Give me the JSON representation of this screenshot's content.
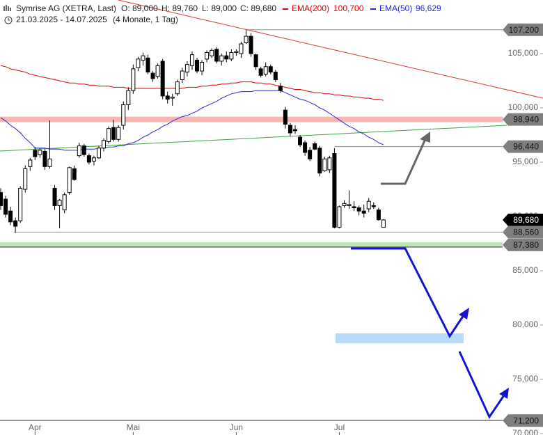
{
  "chart_data": {
    "type": "candlestick",
    "title": "Symrise AG (XETRA, Last)",
    "ohlc": [
      "O: 89,000",
      "H: 89,760",
      "L: 89,000",
      "C: 89,680"
    ],
    "date_range": "21.03.2025 - 14.07.2025",
    "period": "(4 Monate, 1 Tag)",
    "categories": [
      null,
      null,
      null,
      null,
      null,
      null,
      null,
      "Apr",
      null,
      null,
      null,
      null,
      null,
      null,
      null,
      null,
      null,
      null,
      null,
      null,
      null,
      null,
      null,
      null,
      null,
      null,
      null,
      "Mai",
      null,
      null,
      null,
      null,
      null,
      null,
      null,
      null,
      null,
      null,
      null,
      null,
      null,
      null,
      null,
      null,
      null,
      null,
      null,
      null,
      "Jun",
      null,
      null,
      null,
      null,
      null,
      null,
      null,
      null,
      null,
      null,
      null,
      null,
      null,
      null,
      null,
      null,
      null,
      null,
      null,
      null,
      "Jul",
      null,
      null,
      null,
      null,
      null,
      null,
      null,
      null,
      null
    ],
    "candles": {
      "up_color": "#ffffff",
      "down_color": "#000000",
      "open": [
        92200,
        91600,
        90500,
        89600,
        89600,
        92500,
        94600,
        96100,
        95700,
        96000,
        94600,
        92600,
        91000,
        90600,
        92200,
        94400,
        95600,
        96500,
        95600,
        95100,
        95400,
        96300,
        96900,
        98200,
        97100,
        98400,
        100300,
        101600,
        103700,
        104400,
        104600,
        103200,
        102900,
        104300,
        101100,
        100900,
        101300,
        102600,
        103300,
        103900,
        104400,
        103400,
        104500,
        104800,
        105400,
        104300,
        104800,
        104500,
        105100,
        105000,
        106000,
        106600,
        104900,
        103600,
        103100,
        103800,
        103300,
        102000,
        99800,
        98400,
        98000,
        97300,
        96800,
        96100,
        96700,
        96300,
        94200,
        94300,
        95800,
        89000,
        91000,
        91000,
        90900,
        90800,
        90500,
        90700,
        91000,
        90600,
        89000
      ],
      "high": [
        92600,
        91900,
        90900,
        89900,
        92800,
        94700,
        95400,
        96400,
        96300,
        96200,
        98850,
        92900,
        91600,
        92200,
        94600,
        94700,
        96800,
        96700,
        95800,
        95600,
        96500,
        97200,
        98300,
        98900,
        98400,
        100600,
        101900,
        104000,
        104700,
        105100,
        104900,
        103400,
        104100,
        104500,
        101500,
        101300,
        102600,
        103700,
        104300,
        105200,
        104600,
        104400,
        105300,
        105500,
        105600,
        105000,
        105200,
        105400,
        105400,
        106100,
        107200,
        106900,
        105000,
        103800,
        104200,
        104000,
        103500,
        102300,
        100100,
        98600,
        98400,
        97500,
        97000,
        96400,
        96900,
        96500,
        95500,
        95600,
        96300,
        91000,
        91500,
        92400,
        91400,
        91000,
        91100,
        91700,
        91300,
        90800,
        89760
      ],
      "low": [
        90600,
        89900,
        89200,
        88500,
        89400,
        92200,
        94200,
        95200,
        95400,
        94300,
        94400,
        90600,
        88900,
        90300,
        92000,
        93300,
        95400,
        95500,
        94800,
        94700,
        95300,
        96000,
        96700,
        96900,
        96900,
        98000,
        99800,
        101300,
        103400,
        103900,
        103100,
        102400,
        102700,
        100800,
        100400,
        100200,
        101100,
        102300,
        102900,
        103500,
        103200,
        103000,
        104200,
        104600,
        104100,
        103900,
        104200,
        104300,
        104800,
        104600,
        105900,
        104700,
        103500,
        102800,
        102900,
        103100,
        102400,
        101400,
        98100,
        97400,
        97600,
        96400,
        95600,
        95100,
        96100,
        93700,
        94100,
        94000,
        88900,
        88900,
        90800,
        90700,
        90500,
        90100,
        89900,
        90400,
        90700,
        89600,
        89000
      ],
      "close": [
        91000,
        90200,
        89500,
        89100,
        92600,
        94400,
        95200,
        95500,
        96100,
        94600,
        95300,
        91000,
        91500,
        92000,
        94500,
        93400,
        96500,
        95700,
        95000,
        95400,
        96300,
        97000,
        98100,
        97100,
        98200,
        100300,
        101600,
        103600,
        104500,
        104800,
        103300,
        102700,
        103900,
        101100,
        100800,
        101000,
        102400,
        103400,
        104000,
        104900,
        103400,
        104200,
        105100,
        105300,
        104300,
        104800,
        104500,
        105100,
        105200,
        105900,
        106600,
        105000,
        103800,
        103000,
        103800,
        103300,
        102600,
        101600,
        98500,
        97700,
        97900,
        96600,
        95900,
        95300,
        96200,
        94000,
        95300,
        95400,
        89000,
        90900,
        91200,
        91100,
        90800,
        90500,
        90300,
        91400,
        90900,
        89700,
        89680
      ]
    },
    "series": [
      {
        "name": "EMA(200)",
        "color": "#e00000",
        "last": "100,700",
        "values": [
          103900,
          103800,
          103600,
          103500,
          103400,
          103300,
          103100,
          103000,
          102900,
          102800,
          102700,
          102600,
          102500,
          102400,
          102300,
          102300,
          102200,
          102200,
          102100,
          102100,
          102000,
          102000,
          102000,
          101900,
          101900,
          101900,
          101800,
          101800,
          101800,
          101800,
          101800,
          101800,
          101800,
          101800,
          101800,
          101800,
          101800,
          101800,
          101900,
          101900,
          101900,
          102000,
          102000,
          102100,
          102100,
          102200,
          102200,
          102300,
          102300,
          102400,
          102400,
          102400,
          102300,
          102300,
          102200,
          102200,
          102100,
          102000,
          101900,
          101800,
          101700,
          101700,
          101600,
          101500,
          101400,
          101400,
          101300,
          101300,
          101200,
          101200,
          101100,
          101100,
          101000,
          101000,
          100900,
          100900,
          100800,
          100800,
          100700
        ]
      },
      {
        "name": "EMA(50)",
        "color": "#2828d8",
        "last": "96,629",
        "values": [
          99100,
          98800,
          98400,
          98100,
          97700,
          97200,
          96800,
          96300,
          96300,
          96300,
          96200,
          96200,
          96200,
          96100,
          96100,
          96100,
          96100,
          96200,
          96200,
          96200,
          96300,
          96300,
          96400,
          96400,
          96500,
          96500,
          96700,
          96800,
          97000,
          97300,
          97500,
          97800,
          98000,
          98300,
          98500,
          98800,
          99000,
          99200,
          99300,
          99500,
          99700,
          100000,
          100200,
          100400,
          100600,
          100900,
          101100,
          101300,
          101400,
          101500,
          101500,
          101500,
          101600,
          101600,
          101600,
          101600,
          101600,
          101600,
          101400,
          101200,
          101000,
          100800,
          100700,
          100500,
          100300,
          100000,
          99800,
          99500,
          99200,
          98900,
          98600,
          98300,
          98100,
          97800,
          97600,
          97300,
          97100,
          96800,
          96600
        ]
      }
    ],
    "levels": [
      {
        "value": 107200,
        "label": "107,200",
        "tag_color": "#7f7f7f",
        "text_color": "#111111"
      },
      {
        "value": 98940,
        "label": "98,940",
        "tag_color": "#7f7f7f",
        "text_color": "#111111",
        "band_color": "#f5b7b1"
      },
      {
        "value": 96440,
        "label": "96,440",
        "tag_color": "#7f7f7f",
        "text_color": "#111111"
      },
      {
        "value": 89680,
        "label": "89,680",
        "tag_color": "#000000",
        "text_color": "#ffffff"
      },
      {
        "value": 88560,
        "label": "88,560",
        "tag_color": "#7f7f7f",
        "text_color": "#111111"
      },
      {
        "value": 87380,
        "label": "87,380",
        "tag_color": "#7f7f7f",
        "text_color": "#111111",
        "band_color": "#bce8b8"
      },
      {
        "value": 71200,
        "label": "71,200",
        "tag_color": "#7f7f7f",
        "text_color": "#111111"
      }
    ],
    "ylim": [
      69870,
      109940
    ],
    "yticks": [
      {
        "value": 70000,
        "label": "70,000"
      },
      {
        "value": 75000,
        "label": "75,000"
      },
      {
        "value": 80000,
        "label": "80,000"
      },
      {
        "value": 85000,
        "label": "85,000"
      },
      {
        "value": 90000,
        "label": "90,000"
      },
      {
        "value": 95000,
        "label": "95,000"
      },
      {
        "value": 100000,
        "label": "100,000"
      },
      {
        "value": 105000,
        "label": "105,000"
      }
    ]
  }
}
